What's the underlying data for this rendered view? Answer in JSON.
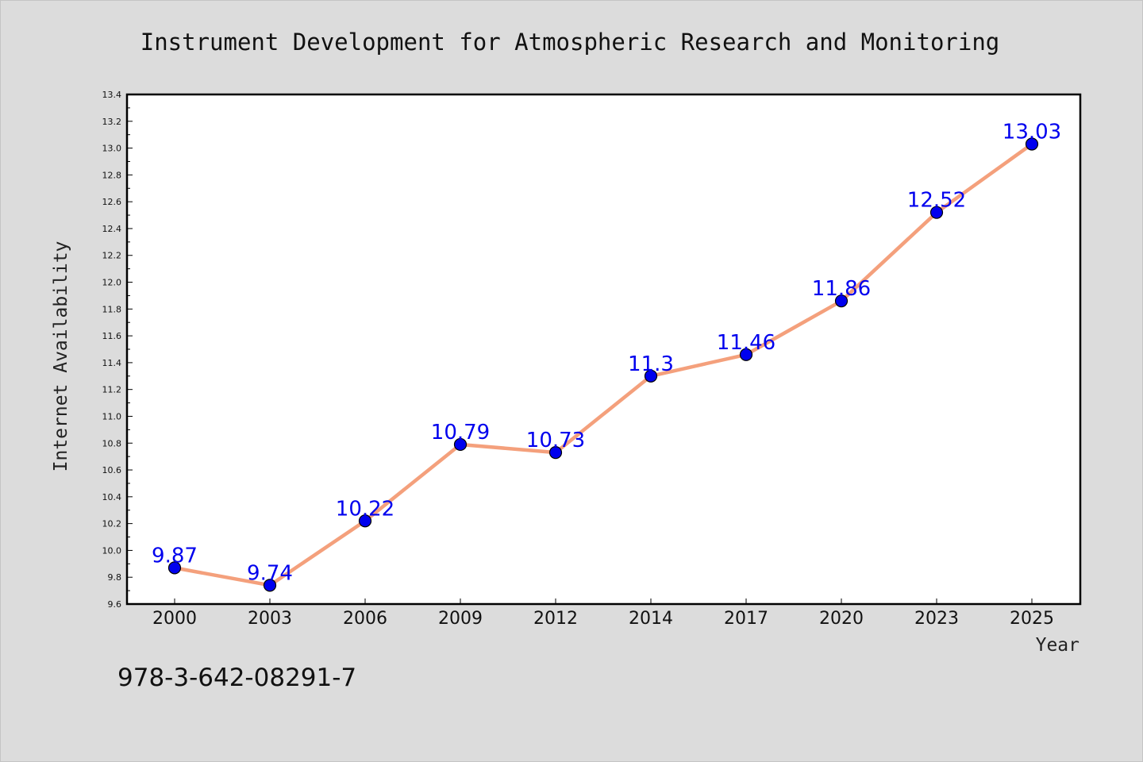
{
  "chart_data": {
    "type": "line",
    "title": "Instrument Development for Atmospheric Research and Monitoring",
    "xlabel": "Year",
    "ylabel": "Internet Availability",
    "categories": [
      "2000",
      "2003",
      "2006",
      "2009",
      "2012",
      "2014",
      "2017",
      "2020",
      "2023",
      "2025"
    ],
    "series": [
      {
        "values": [
          9.87,
          9.74,
          10.22,
          10.79,
          10.73,
          11.3,
          11.46,
          11.86,
          12.52,
          13.03
        ]
      }
    ],
    "data_labels": [
      "9.87",
      "9.74",
      "10.22",
      "10.79",
      "10.73",
      "11.3",
      "11.46",
      "11.86",
      "12.52",
      "13.03"
    ],
    "ylim": [
      9.6,
      13.4
    ],
    "yticks": [
      "9.6",
      "9.8",
      "10.0",
      "10.2",
      "10.4",
      "10.6",
      "10.8",
      "11.0",
      "11.2",
      "11.4",
      "11.6",
      "11.8",
      "12.0",
      "12.2",
      "12.4",
      "12.6",
      "12.8",
      "13.0",
      "13.2",
      "13.4"
    ],
    "grid": false,
    "line_color": "#f4a07c",
    "marker_color": "#0000ee",
    "label_color": "#0000ee"
  },
  "footer_code": "978-3-642-08291-7"
}
